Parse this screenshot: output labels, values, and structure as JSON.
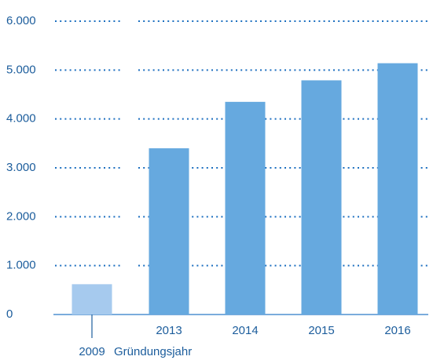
{
  "chart_data": {
    "type": "bar",
    "categories": [
      "2009",
      "2013",
      "2014",
      "2015",
      "2016"
    ],
    "values": [
      620,
      3400,
      4350,
      4790,
      5140
    ],
    "colors": [
      "#a6caee",
      "#66a9df",
      "#66a9df",
      "#66a9df",
      "#66a9df"
    ],
    "annotation": "Gründungsjahr",
    "ylim": [
      0,
      6000
    ],
    "yticks": [
      {
        "value": 0,
        "label": "0"
      },
      {
        "value": 1000,
        "label": "1.000"
      },
      {
        "value": 2000,
        "label": "2.000"
      },
      {
        "value": 3000,
        "label": "3.000"
      },
      {
        "value": 4000,
        "label": "4.000"
      },
      {
        "value": 5000,
        "label": "5.000"
      },
      {
        "value": 6000,
        "label": "6.000"
      }
    ],
    "grid": true
  }
}
